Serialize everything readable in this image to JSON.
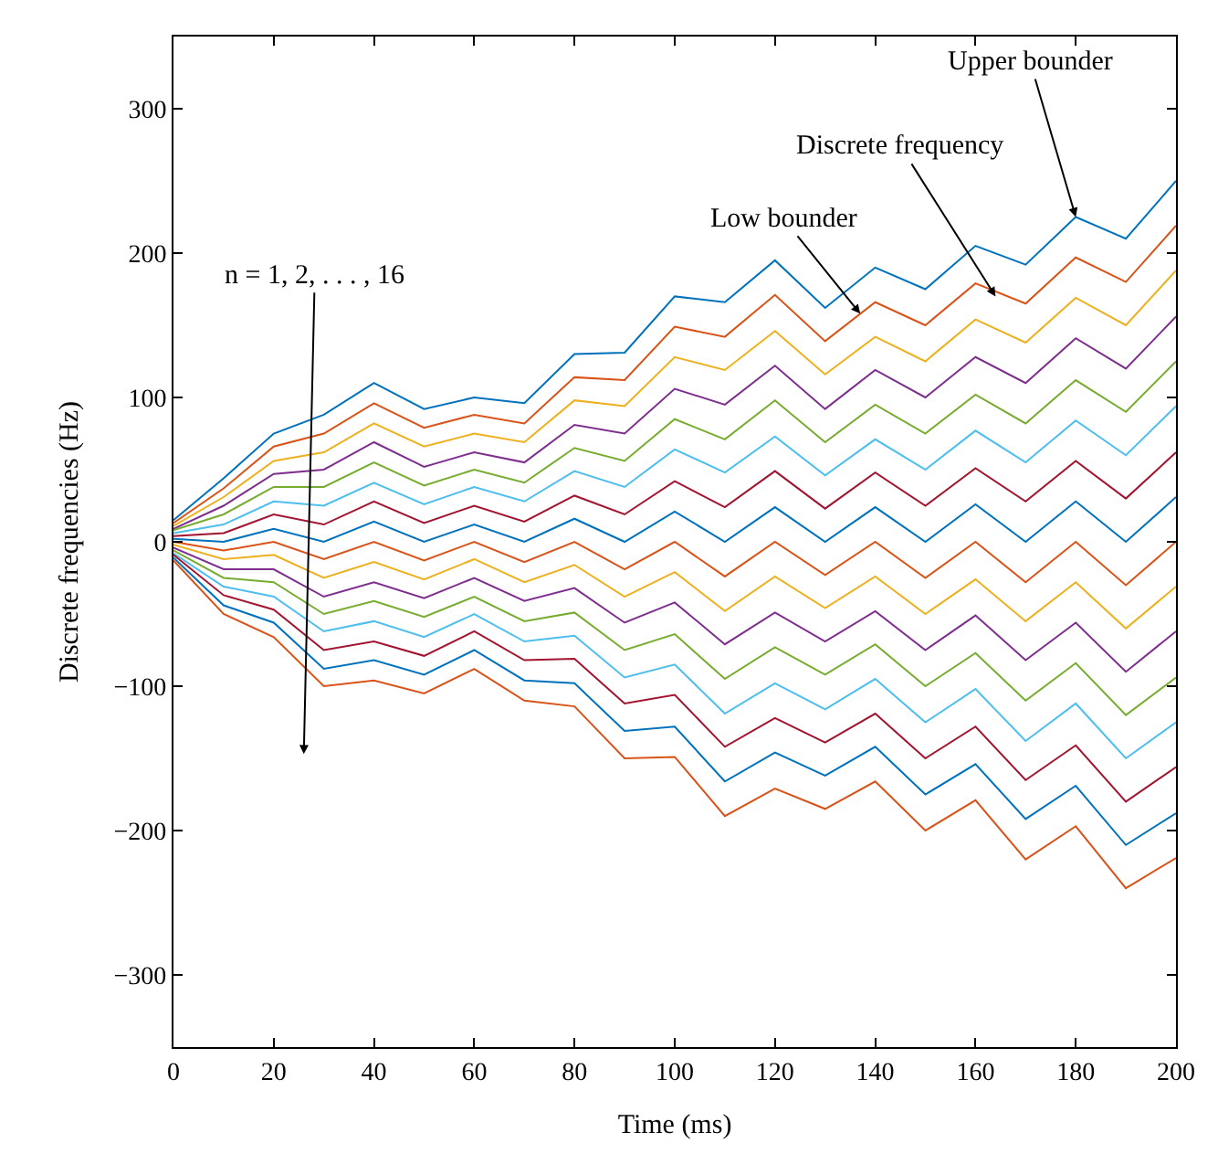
{
  "chart_data": {
    "type": "line",
    "xlabel": "Time (ms)",
    "ylabel": "Discrete frequencies (Hz)",
    "x": [
      0,
      10,
      20,
      30,
      40,
      50,
      60,
      70,
      80,
      90,
      100,
      110,
      120,
      130,
      140,
      150,
      160,
      170,
      180,
      190,
      200
    ],
    "xlim": [
      0,
      200
    ],
    "xticks": [
      0,
      20,
      40,
      60,
      80,
      100,
      120,
      140,
      160,
      180,
      200
    ],
    "ylim": [
      -350,
      350
    ],
    "yticks": [
      {
        "value": -300,
        "label": "−300"
      },
      {
        "value": -200,
        "label": "−200"
      },
      {
        "value": -100,
        "label": "−100"
      },
      0,
      100,
      200,
      300
    ],
    "marker": "none",
    "line_style": "solid",
    "series": [
      {
        "color": "#0072bd",
        "values": [
          15,
          44,
          75,
          88,
          110,
          92,
          100,
          96,
          130,
          131,
          170,
          166,
          195,
          162,
          190,
          175,
          205,
          192,
          225,
          210,
          250
        ]
      },
      {
        "color": "#d95319",
        "values": [
          13,
          37,
          66,
          75,
          96,
          79,
          88,
          82,
          114,
          112,
          149,
          142,
          171,
          139,
          166,
          150,
          179,
          165,
          197,
          180,
          219
        ]
      },
      {
        "color": "#edb120",
        "values": [
          11,
          31,
          56,
          62,
          82,
          66,
          75,
          69,
          98,
          94,
          128,
          119,
          146,
          116,
          142,
          125,
          154,
          138,
          169,
          150,
          188
        ]
      },
      {
        "color": "#7e2f8e",
        "values": [
          9,
          25,
          47,
          50,
          69,
          52,
          62,
          55,
          81,
          75,
          106,
          95,
          122,
          92,
          119,
          100,
          128,
          110,
          141,
          120,
          156
        ]
      },
      {
        "color": "#77ac30",
        "values": [
          8,
          19,
          38,
          38,
          55,
          39,
          50,
          41,
          65,
          56,
          85,
          71,
          98,
          69,
          95,
          75,
          102,
          82,
          112,
          90,
          125
        ]
      },
      {
        "color": "#4dbeee",
        "values": [
          6,
          12,
          28,
          25,
          41,
          26,
          38,
          28,
          49,
          38,
          64,
          48,
          73,
          46,
          71,
          50,
          77,
          55,
          84,
          60,
          94
        ]
      },
      {
        "color": "#a2142f",
        "values": [
          4,
          6,
          19,
          12,
          28,
          13,
          25,
          14,
          32,
          19,
          42,
          24,
          49,
          23,
          48,
          25,
          51,
          28,
          56,
          30,
          62
        ]
      },
      {
        "color": "#0072bd",
        "values": [
          2,
          0,
          9,
          0,
          14,
          0,
          12,
          0,
          16,
          0,
          21,
          0,
          24,
          0,
          24,
          0,
          26,
          0,
          28,
          0,
          31
        ]
      },
      {
        "color": "#d95319",
        "values": [
          0,
          -6,
          0,
          -12,
          0,
          -13,
          0,
          -14,
          0,
          -19,
          0,
          -24,
          0,
          -23,
          0,
          -25,
          0,
          -28,
          0,
          -30,
          0
        ]
      },
      {
        "color": "#edb120",
        "values": [
          -2,
          -12,
          -9,
          -25,
          -14,
          -26,
          -12,
          -28,
          -16,
          -38,
          -21,
          -48,
          -24,
          -46,
          -24,
          -50,
          -26,
          -55,
          -28,
          -60,
          -31
        ]
      },
      {
        "color": "#7e2f8e",
        "values": [
          -4,
          -19,
          -19,
          -38,
          -28,
          -39,
          -25,
          -41,
          -32,
          -56,
          -42,
          -71,
          -49,
          -69,
          -48,
          -75,
          -51,
          -82,
          -56,
          -90,
          -62
        ]
      },
      {
        "color": "#77ac30",
        "values": [
          -6,
          -25,
          -28,
          -50,
          -41,
          -52,
          -38,
          -55,
          -49,
          -75,
          -64,
          -95,
          -73,
          -92,
          -71,
          -100,
          -77,
          -110,
          -84,
          -120,
          -94
        ]
      },
      {
        "color": "#4dbeee",
        "values": [
          -8,
          -31,
          -38,
          -62,
          -55,
          -66,
          -50,
          -69,
          -65,
          -94,
          -85,
          -119,
          -98,
          -116,
          -95,
          -125,
          -102,
          -138,
          -112,
          -150,
          -125
        ]
      },
      {
        "color": "#a2142f",
        "values": [
          -9,
          -37,
          -47,
          -75,
          -69,
          -79,
          -62,
          -82,
          -81,
          -112,
          -106,
          -142,
          -122,
          -139,
          -119,
          -150,
          -128,
          -165,
          -141,
          -180,
          -156
        ]
      },
      {
        "color": "#0072bd",
        "values": [
          -11,
          -44,
          -56,
          -88,
          -82,
          -92,
          -75,
          -96,
          -98,
          -131,
          -128,
          -166,
          -146,
          -162,
          -142,
          -175,
          -154,
          -192,
          -169,
          -210,
          -188
        ]
      },
      {
        "color": "#d95319",
        "values": [
          -13,
          -50,
          -66,
          -100,
          -96,
          -105,
          -88,
          -110,
          -114,
          -150,
          -149,
          -190,
          -171,
          -185,
          -166,
          -200,
          -179,
          -220,
          -197,
          -240,
          -219
        ]
      }
    ],
    "annotations": [
      {
        "text": "Upper bounder",
        "x": 180,
        "y": 225
      },
      {
        "text": "Discrete frequency",
        "x": 164,
        "y": 170
      },
      {
        "text": "Low bounder",
        "x": 137,
        "y": 158
      },
      "n = 1, 2, . . . , 16"
    ]
  }
}
